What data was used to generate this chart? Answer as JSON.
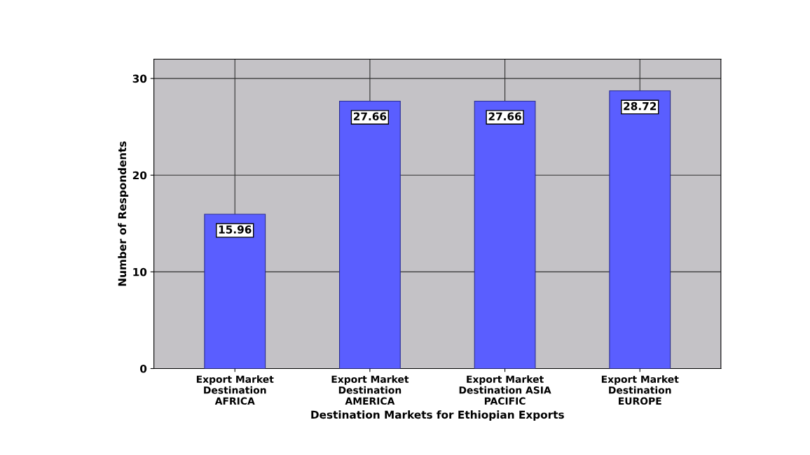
{
  "chart_data": {
    "type": "bar",
    "xlabel": "Destination Markets for Ethiopian Exports",
    "ylabel": "Number of Respondents",
    "categories": [
      "Export Market\nDestination\nAFRICA",
      "Export Market\nDestination\nAMERICA",
      "Export Market\nDestination ASIA\nPACIFIC",
      "Export Market\nDestination\nEUROPE"
    ],
    "values": [
      15.96,
      27.66,
      27.66,
      28.72
    ],
    "color": "#5a5eff",
    "ylim": [
      0,
      32
    ],
    "yticks": [
      0,
      10,
      20,
      30
    ],
    "grid": true,
    "data_labels": true
  }
}
